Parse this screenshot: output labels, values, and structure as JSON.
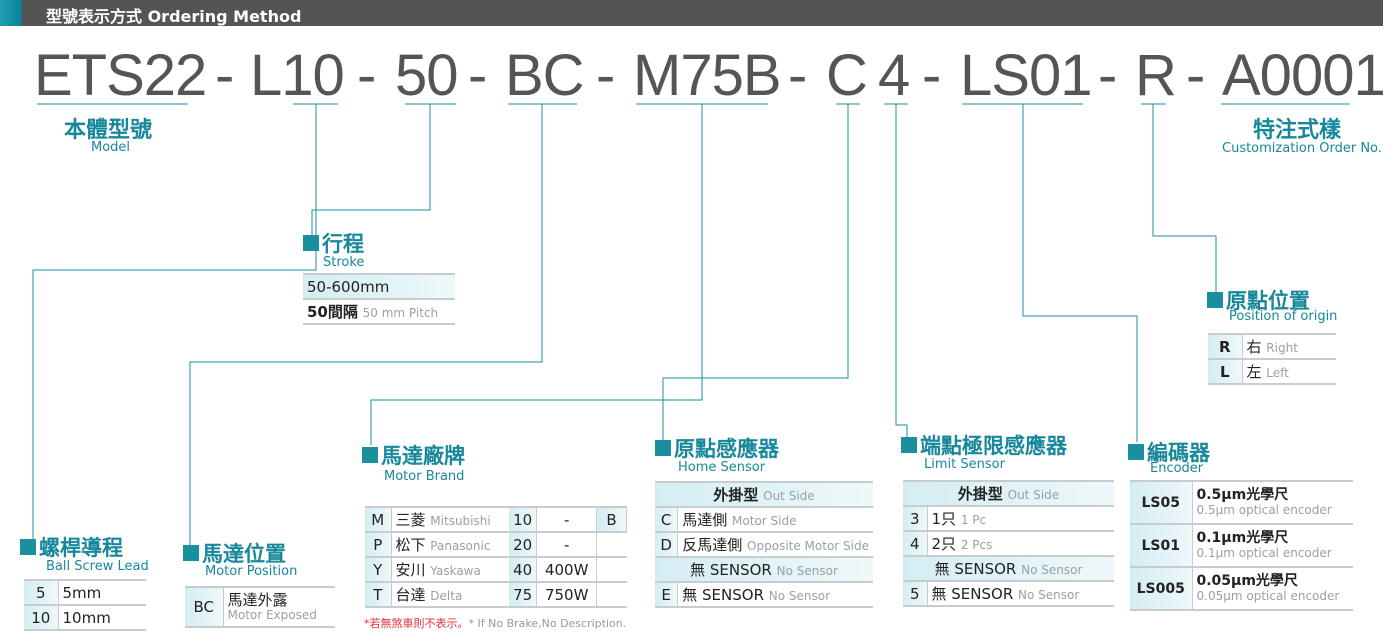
{
  "header": {
    "title": "型號表示方式 Ordering Method"
  },
  "code": {
    "segments": [
      "ETS22",
      "-",
      "L10",
      "-",
      "50",
      "-",
      "BC",
      "-",
      "M75B",
      "-",
      "C",
      "4",
      "-",
      "LS01",
      "-",
      "R",
      "-",
      "A0001"
    ]
  },
  "model": {
    "zh": "本體型號",
    "en": "Model"
  },
  "custom": {
    "zh": "特注式樣",
    "en": "Customization Order No."
  },
  "stroke": {
    "zh": "行程",
    "en": "Stroke",
    "rows": [
      {
        "v": "50-600mm"
      },
      {
        "v": "50間隔",
        "en": "50 mm Pitch"
      }
    ]
  },
  "lead": {
    "zh": "螺桿導程",
    "en": "Ball Screw Lead",
    "rows": [
      {
        "k": "5",
        "v": "5mm"
      },
      {
        "k": "10",
        "v": "10mm"
      }
    ]
  },
  "motorpos": {
    "zh": "馬達位置",
    "en": "Motor Position",
    "rows": [
      {
        "k": "BC",
        "v": "馬達外露",
        "e": "Motor Exposed"
      }
    ]
  },
  "brand": {
    "zh": "馬達廠牌",
    "en": "Motor Brand",
    "rows": [
      {
        "k": "M",
        "v": "三菱",
        "e": "Mitsubishi",
        "n": "10",
        "w": "-",
        "b": "B"
      },
      {
        "k": "P",
        "v": "松下",
        "e": "Panasonic",
        "n": "20",
        "w": "-",
        "b": ""
      },
      {
        "k": "Y",
        "v": "安川",
        "e": "Yaskawa",
        "n": "40",
        "w": "400W",
        "b": ""
      },
      {
        "k": "T",
        "v": "台達",
        "e": "Delta",
        "n": "75",
        "w": "750W",
        "b": ""
      }
    ],
    "note_zh": "*若無煞車則不表示。",
    "note_en": "* If No Brake,No Description."
  },
  "home": {
    "zh": "原點感應器",
    "en": "Home Sensor",
    "h1": "外掛型",
    "h1e": "Out Side",
    "rows": [
      {
        "k": "C",
        "v": "馬達側",
        "e": "Motor Side"
      },
      {
        "k": "D",
        "v": "反馬達側",
        "e": "Opposite Motor Side"
      }
    ],
    "h2": "無 SENSOR",
    "h2e": "No Sensor",
    "last": {
      "k": "E",
      "v": "無 SENSOR",
      "e": "No Sensor"
    }
  },
  "limit": {
    "zh": "端點極限感應器",
    "en": "Limit Sensor",
    "h1": "外掛型",
    "h1e": "Out Side",
    "rows": [
      {
        "k": "3",
        "v": "1只",
        "e": "1 Pc"
      },
      {
        "k": "4",
        "v": "2只",
        "e": "2 Pcs"
      }
    ],
    "h2": "無 SENSOR",
    "h2e": "No Sensor",
    "last": {
      "k": "5",
      "v": "無 SENSOR",
      "e": "No Sensor"
    }
  },
  "encoder": {
    "zh": "編碼器",
    "en": "Encoder",
    "rows": [
      {
        "k": "LS05",
        "v": "0.5μm光學尺",
        "e": "0.5μm optical encoder"
      },
      {
        "k": "LS01",
        "v": "0.1μm光學尺",
        "e": "0.1μm optical encoder"
      },
      {
        "k": "LS005",
        "v": "0.05μm光學尺",
        "e": "0.05μm optical encoder"
      }
    ]
  },
  "origin": {
    "zh": "原點位置",
    "en": "Position of origin",
    "rows": [
      {
        "k": "R",
        "v": "右",
        "e": "Right"
      },
      {
        "k": "L",
        "v": "左",
        "e": "Left"
      }
    ]
  },
  "colors": {
    "accent": "#1a8fa0",
    "header": "#545456",
    "code": "#555555"
  }
}
